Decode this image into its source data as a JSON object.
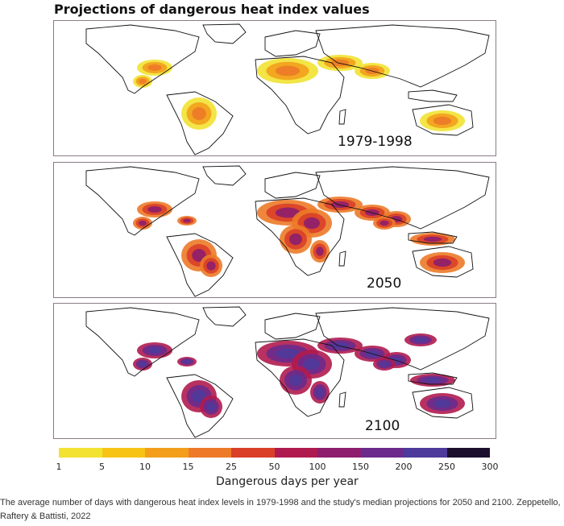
{
  "title": "Projections of dangerous heat index values",
  "panels": [
    {
      "label": "1979-1998",
      "level": 0.35
    },
    {
      "label": "2050",
      "level": 0.65
    },
    {
      "label": "2100",
      "level": 0.9
    }
  ],
  "colorbar": {
    "title": "Dangerous days per year",
    "ticks": [
      "1",
      "5",
      "10",
      "15",
      "25",
      "50",
      "100",
      "150",
      "200",
      "250",
      "300"
    ],
    "colors": [
      "#f2e232",
      "#f7c416",
      "#f39f1c",
      "#ec7a28",
      "#d94027",
      "#b01b4f",
      "#8d1e6e",
      "#6c2b8c",
      "#4e3a9b",
      "#1c0f2e"
    ]
  },
  "caption": "The average number of days with dangerous heat index levels in 1979-1998 and the study's median projections for 2050 and 2100. Zeppetello, Raftery & Battisti, 2022"
}
